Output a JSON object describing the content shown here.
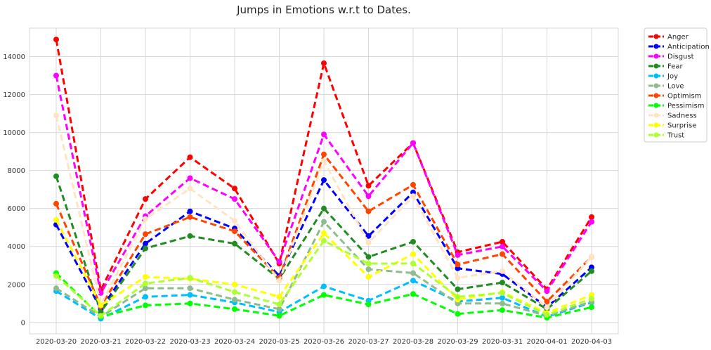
{
  "chart_data": {
    "type": "line",
    "title": "Jumps in Emotions w.r.t to Dates.",
    "xlabel": "",
    "ylabel": "",
    "categories": [
      "2020-03-20",
      "2020-03-21",
      "2020-03-22",
      "2020-03-23",
      "2020-03-24",
      "2020-03-25",
      "2020-03-26",
      "2020-03-27",
      "2020-03-28",
      "2020-03-29",
      "2020-03-31",
      "2020-04-01",
      "2020-04-03"
    ],
    "ylim": [
      -600,
      15500
    ],
    "yticks": [
      0,
      2000,
      4000,
      6000,
      8000,
      10000,
      12000,
      14000
    ],
    "grid": true,
    "legend_position": "outside-top-right",
    "series": [
      {
        "name": "Anger",
        "color": "#ff0000",
        "values": [
          14900,
          1700,
          6500,
          8700,
          7050,
          3100,
          13650,
          7200,
          9450,
          3700,
          4250,
          1750,
          5550
        ]
      },
      {
        "name": "Anticipation",
        "color": "#0000ff",
        "values": [
          5150,
          700,
          4150,
          5850,
          4950,
          2450,
          7500,
          4550,
          6850,
          2850,
          2550,
          800,
          2900
        ]
      },
      {
        "name": "Disgust",
        "color": "#ff00ff",
        "values": [
          13000,
          1550,
          5600,
          7600,
          6500,
          3200,
          9900,
          6650,
          9450,
          3550,
          4000,
          1650,
          5300
        ]
      },
      {
        "name": "Fear",
        "color": "#228b22",
        "values": [
          7700,
          550,
          3900,
          4550,
          4150,
          2300,
          6000,
          3450,
          4250,
          1750,
          2100,
          700,
          2700
        ]
      },
      {
        "name": "Joy",
        "color": "#00bfff",
        "values": [
          1650,
          200,
          1350,
          1450,
          1050,
          550,
          1900,
          1150,
          2200,
          1100,
          1300,
          300,
          1050
        ]
      },
      {
        "name": "Love",
        "color": "#8fbc8f",
        "values": [
          1800,
          300,
          1800,
          1800,
          1200,
          700,
          5300,
          2800,
          2600,
          1000,
          1000,
          350,
          1100
        ]
      },
      {
        "name": "Optimism",
        "color": "#ff4500",
        "values": [
          6250,
          850,
          4650,
          5550,
          4800,
          2350,
          8850,
          5850,
          7250,
          3050,
          3600,
          1100,
          3450
        ]
      },
      {
        "name": "Pessimism",
        "color": "#00ff00",
        "values": [
          2600,
          300,
          900,
          1000,
          700,
          350,
          1450,
          950,
          1500,
          450,
          650,
          250,
          800
        ]
      },
      {
        "name": "Sadness",
        "color": "#ffe4c4",
        "values": [
          10900,
          950,
          5450,
          7050,
          5350,
          2200,
          8500,
          4200,
          6650,
          2350,
          2700,
          800,
          3450
        ]
      },
      {
        "name": "Surprise",
        "color": "#ffff00",
        "values": [
          5400,
          900,
          2400,
          2300,
          2000,
          1350,
          4700,
          2400,
          3600,
          1200,
          1600,
          500,
          1450
        ]
      },
      {
        "name": "Trust",
        "color": "#adff2f",
        "values": [
          2450,
          350,
          2050,
          2350,
          1600,
          950,
          4300,
          3100,
          3100,
          1350,
          1550,
          400,
          1250
        ]
      }
    ]
  }
}
